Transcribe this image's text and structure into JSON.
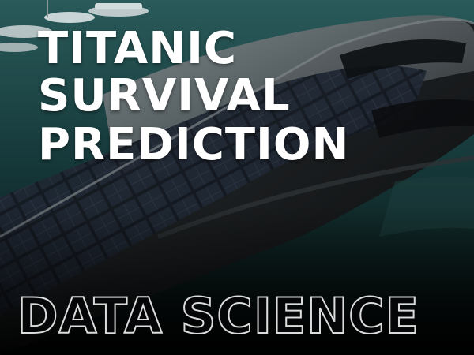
{
  "title": {
    "lines": [
      "TITANIC",
      "SURVIVAL",
      "PREDICTION"
    ]
  },
  "footer": {
    "label": "DATA SCIENCE"
  },
  "colors": {
    "title_text": "#ffffff",
    "footer_outline": "#dcdcdc",
    "water": "#1d4a4a",
    "background": "#050607"
  }
}
